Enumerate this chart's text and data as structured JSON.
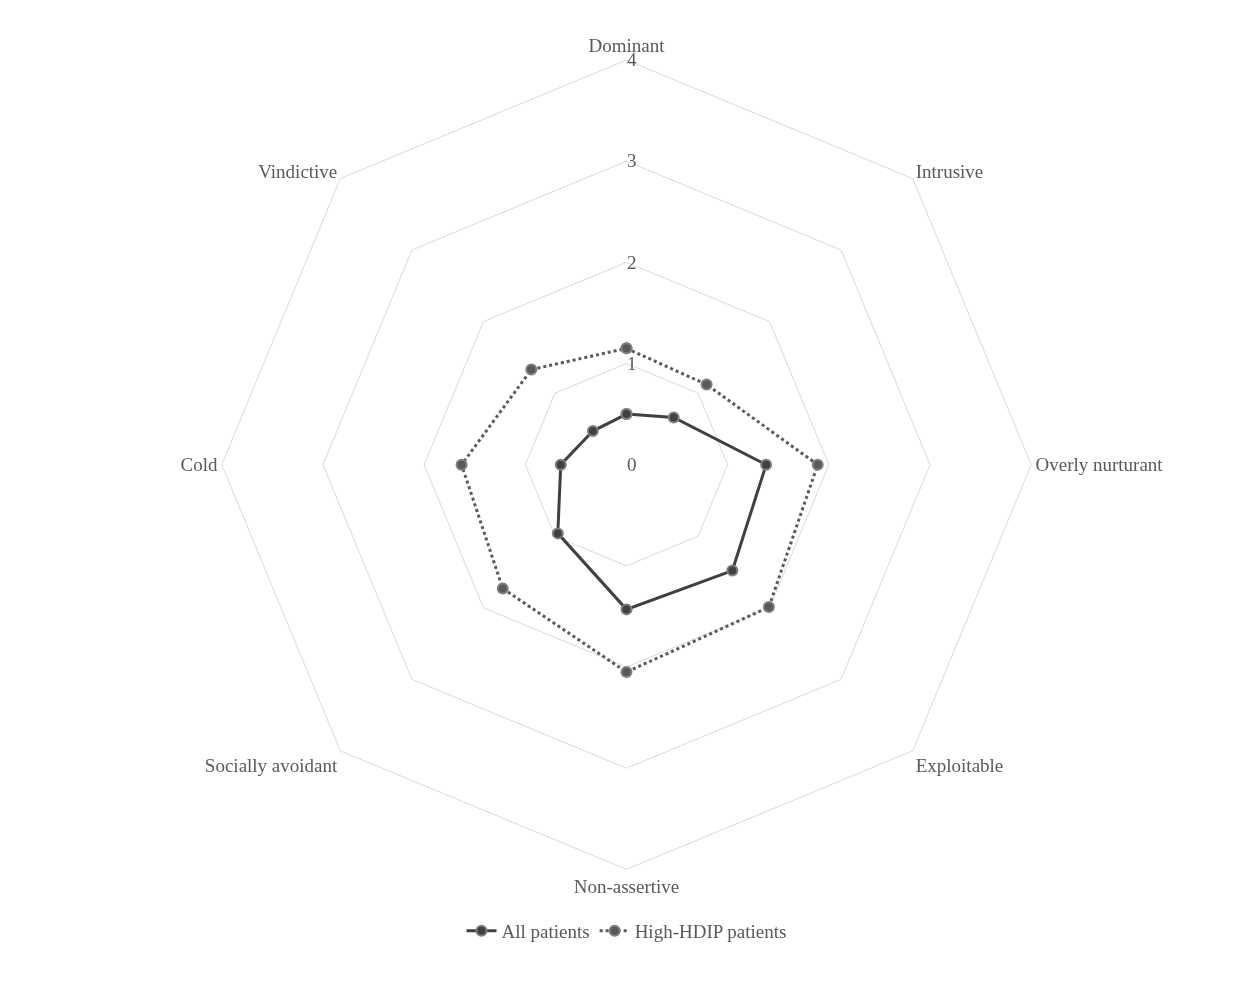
{
  "chart_data": {
    "type": "radar",
    "categories": [
      "Dominant",
      "Intrusive",
      "Overly nurturant",
      "Exploitable",
      "Non-assertive",
      "Socially avoidant",
      "Cold",
      "Vindictive"
    ],
    "series": [
      {
        "name": "All patients",
        "color": "#404040",
        "line_style": "solid",
        "values": [
          0.5,
          0.66,
          1.38,
          1.48,
          1.43,
          0.96,
          0.65,
          0.47
        ]
      },
      {
        "name": "High-HDIP patients",
        "color": "#595959",
        "line_style": "dotted",
        "values": [
          1.15,
          1.12,
          1.89,
          1.99,
          2.05,
          1.73,
          1.63,
          1.33
        ]
      }
    ],
    "ylim": [
      0,
      4
    ],
    "yticks": [
      0,
      1,
      2,
      3,
      4
    ],
    "grid": true,
    "legend": "bottom",
    "marker": "circle"
  }
}
